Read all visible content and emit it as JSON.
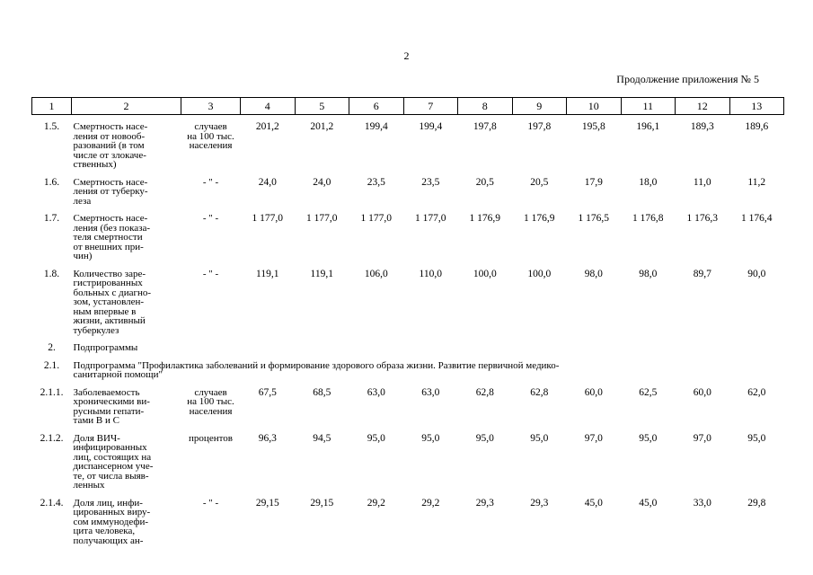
{
  "page": {
    "number": "2",
    "continuation": "Продолжение приложения № 5"
  },
  "table": {
    "header_cols": [
      "1",
      "2",
      "3",
      "4",
      "5",
      "6",
      "7",
      "8",
      "9",
      "10",
      "11",
      "12",
      "13"
    ],
    "rows": [
      {
        "type": "data",
        "num": "1.5.",
        "name": "Смертность насе-\nления от новооб-\nразований (в том\nчисле от злокаче-\nственных)",
        "unit": "случаев\nна 100 тыс.\nнаселения",
        "values": [
          "201,2",
          "201,2",
          "199,4",
          "199,4",
          "197,8",
          "197,8",
          "195,8",
          "196,1",
          "189,3",
          "189,6"
        ]
      },
      {
        "type": "data",
        "num": "1.6.",
        "name": "Смертность насе-\nления от туберку-\nлеза",
        "unit": "- \" -",
        "values": [
          "24,0",
          "24,0",
          "23,5",
          "23,5",
          "20,5",
          "20,5",
          "17,9",
          "18,0",
          "11,0",
          "11,2"
        ]
      },
      {
        "type": "data",
        "num": "1.7.",
        "name": "Смертность насе-\nления (без показа-\nтеля смертности\nот внешних при-\nчин)",
        "unit": "- \" -",
        "values": [
          "1 177,0",
          "1 177,0",
          "1 177,0",
          "1 177,0",
          "1 176,9",
          "1 176,9",
          "1 176,5",
          "1 176,8",
          "1 176,3",
          "1 176,4"
        ]
      },
      {
        "type": "data",
        "num": "1.8.",
        "name": "Количество заре-\nгистрированных\nбольных с диагно-\nзом, установлен-\nным впервые в\nжизни, активный\nтуберкулез",
        "unit": "- \" -",
        "values": [
          "119,1",
          "119,1",
          "106,0",
          "110,0",
          "100,0",
          "100,0",
          "98,0",
          "98,0",
          "89,7",
          "90,0"
        ]
      },
      {
        "type": "section",
        "num": "2.",
        "text": "Подпрограммы"
      },
      {
        "type": "section",
        "num": "2.1.",
        "text": "Подпрограмма \"Профилактика заболеваний и формирование здорового образа жизни. Развитие первичной медико-\nсанитарной помощи\""
      },
      {
        "type": "data",
        "num": "2.1.1.",
        "name": "Заболеваемость\nхроническими ви-\nрусными гепати-\nтами В и С",
        "unit": "случаев\nна 100 тыс.\nнаселения",
        "values": [
          "67,5",
          "68,5",
          "63,0",
          "63,0",
          "62,8",
          "62,8",
          "60,0",
          "62,5",
          "60,0",
          "62,0"
        ]
      },
      {
        "type": "data",
        "num": "2.1.2.",
        "name": "Доля ВИЧ-\nинфицированных\nлиц, состоящих на\nдиспансерном уче-\nте, от числа выяв-\nленных",
        "unit": "процентов",
        "values": [
          "96,3",
          "94,5",
          "95,0",
          "95,0",
          "95,0",
          "95,0",
          "97,0",
          "95,0",
          "97,0",
          "95,0"
        ]
      },
      {
        "type": "data",
        "num": "2.1.4.",
        "name": "Доля лиц, инфи-\nцированных виру-\nсом иммунодефи-\nцита человека,\nполучающих ан-",
        "unit": "- \" -",
        "values": [
          "29,15",
          "29,15",
          "29,2",
          "29,2",
          "29,3",
          "29,3",
          "45,0",
          "45,0",
          "33,0",
          "29,8"
        ]
      }
    ]
  }
}
